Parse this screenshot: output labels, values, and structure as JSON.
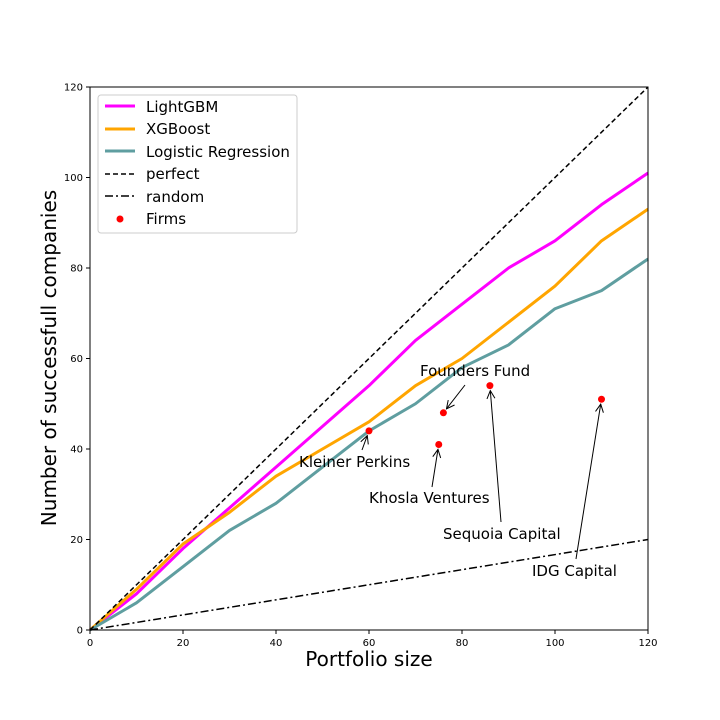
{
  "chart_data": {
    "type": "line",
    "title": "",
    "xlabel": "Portfolio size",
    "ylabel": "Number of successfull companies",
    "xlim": [
      0,
      120
    ],
    "ylim": [
      0,
      120
    ],
    "xticks": [
      0,
      20,
      40,
      60,
      80,
      100,
      120
    ],
    "yticks": [
      0,
      20,
      40,
      60,
      80,
      100,
      120
    ],
    "grid": false,
    "legend_position": "top-left",
    "series": [
      {
        "name": "LightGBM",
        "style": "solid",
        "color": "#ff00ff",
        "x": [
          0,
          10,
          20,
          30,
          40,
          50,
          60,
          70,
          80,
          90,
          100,
          110,
          120
        ],
        "y": [
          0,
          8,
          18,
          27,
          36,
          45,
          54,
          64,
          72,
          80,
          86,
          94,
          101
        ]
      },
      {
        "name": "XGBoost",
        "style": "solid",
        "color": "#ffa500",
        "x": [
          0,
          10,
          20,
          30,
          40,
          50,
          60,
          70,
          80,
          90,
          100,
          110,
          120
        ],
        "y": [
          0,
          9,
          19,
          26,
          34,
          40,
          46,
          54,
          60,
          68,
          76,
          86,
          93
        ]
      },
      {
        "name": "Logistic Regression",
        "style": "solid",
        "color": "#5f9ea0",
        "x": [
          0,
          10,
          20,
          30,
          40,
          50,
          60,
          70,
          80,
          90,
          100,
          110,
          120
        ],
        "y": [
          0,
          6,
          14,
          22,
          28,
          36,
          44,
          50,
          58,
          63,
          71,
          75,
          82
        ]
      },
      {
        "name": "perfect",
        "style": "dashed",
        "color": "#000000",
        "x": [
          0,
          120
        ],
        "y": [
          0,
          120
        ]
      },
      {
        "name": "random",
        "style": "dashdot",
        "color": "#000000",
        "x": [
          0,
          120
        ],
        "y": [
          0,
          20
        ]
      }
    ],
    "scatter": {
      "name": "Firms",
      "color": "#ff0000",
      "points": [
        {
          "label": "Kleiner Perkins",
          "x": 60,
          "y": 44
        },
        {
          "label": "Khosla Ventures",
          "x": 75,
          "y": 41
        },
        {
          "label": "Founders Fund",
          "x": 76,
          "y": 48
        },
        {
          "label": "Sequoia Capital",
          "x": 86,
          "y": 54
        },
        {
          "label": "IDG Capital",
          "x": 110,
          "y": 51
        }
      ]
    }
  }
}
